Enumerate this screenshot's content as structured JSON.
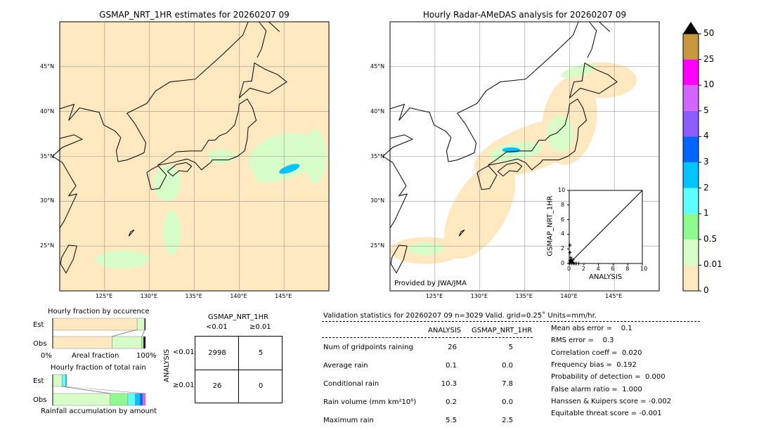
{
  "map_left": {
    "title": "GSMAP_NRT_1HR estimates for 20260207 09"
  },
  "map_right": {
    "title": "Hourly Radar-AMeDAS analysis for 20260207 09",
    "credit": "Provided by JWA/JMA"
  },
  "lon_ticks": [
    "125°E",
    "130°E",
    "135°E",
    "140°E",
    "145°E"
  ],
  "lat_ticks": [
    "45°N",
    "40°N",
    "35°N",
    "30°N",
    "25°N"
  ],
  "colorbar": {
    "labels": [
      "0",
      "0.01",
      "0.5",
      "1",
      "2",
      "3",
      "4",
      "5",
      "10",
      "25",
      "50"
    ],
    "colors": [
      "#fee8c0",
      "#d8fcc8",
      "#8ef98e",
      "#5cfefe",
      "#00c4ff",
      "#0066ff",
      "#8c5cff",
      "#d464ff",
      "#ff00ff",
      "#c8963c"
    ],
    "extend_color": "#000000"
  },
  "chart_data": [
    {
      "type": "scatter",
      "title": "",
      "xlabel": "ANALYSIS",
      "ylabel": "GSMAP_NRT_1HR",
      "xlim": [
        0,
        10
      ],
      "ylim": [
        0,
        10
      ],
      "ticks": [
        "0",
        "2",
        "4",
        "6",
        "8",
        "10"
      ],
      "points": [
        [
          0.1,
          0.1
        ],
        [
          0.2,
          0.3
        ],
        [
          0.3,
          0.5
        ],
        [
          0.4,
          0.2
        ],
        [
          0.5,
          0.1
        ],
        [
          0.1,
          1.5
        ],
        [
          0.1,
          2.5
        ],
        [
          0.2,
          0.8
        ],
        [
          0.6,
          0.0
        ],
        [
          0.8,
          0.0
        ],
        [
          1.0,
          0.0
        ],
        [
          1.3,
          0.0
        ],
        [
          0.3,
          0.0
        ],
        [
          0.1,
          0.4
        ],
        [
          0.5,
          0.5
        ]
      ]
    },
    {
      "type": "bar",
      "title": "Hourly fraction by occurence",
      "xlabel": "Areal fraction",
      "x_ticks": [
        "0%",
        "100%"
      ],
      "categories": [
        "Est",
        "Obs"
      ],
      "series": [
        {
          "values": [
            0.91,
            0.64
          ],
          "color": "#fee8c0"
        },
        {
          "values": [
            0.08,
            0.32
          ],
          "color": "#d8fcc8"
        },
        {
          "values": [
            0.0,
            0.02
          ],
          "color": "#8ef98e"
        },
        {
          "values": [
            0.01,
            0.02
          ],
          "color": "#000000"
        }
      ]
    },
    {
      "type": "bar",
      "title": "Hourly fraction of total rain",
      "xlabel": "Rainfall accumulation by amount",
      "categories": [
        "Est",
        "Obs"
      ],
      "series": [
        {
          "values": [
            0.1,
            0.62
          ],
          "color": "#d8fcc8"
        },
        {
          "values": [
            0.0,
            0.19
          ],
          "color": "#8ef98e"
        },
        {
          "values": [
            0.04,
            0.08
          ],
          "color": "#5cfefe"
        },
        {
          "values": [
            0.01,
            0.05
          ],
          "color": "#00c4ff"
        },
        {
          "values": [
            0.0,
            0.03
          ],
          "color": "#0066ff"
        },
        {
          "values": [
            0.0,
            0.03
          ],
          "color": "#d464ff"
        }
      ]
    }
  ],
  "contingency": {
    "title": "GSMAP_NRT_1HR",
    "col_labels": [
      "<0.01",
      "≥0.01"
    ],
    "row_title": "ANALYSIS",
    "row_labels": [
      "<0.01",
      "≥0.01"
    ],
    "cells": [
      [
        "2998",
        "5"
      ],
      [
        "26",
        "0"
      ]
    ]
  },
  "stats": {
    "header": "Validation statistics for 20260207 09  n=3029 Valid. grid=0.25˚ Units=mm/hr.",
    "columns": [
      "ANALYSIS",
      "GSMAP_NRT_1HR"
    ],
    "rows": [
      {
        "label": "Num of gridpoints raining",
        "a": "26",
        "g": "5"
      },
      {
        "label": "Average rain",
        "a": "0.1",
        "g": "0.0"
      },
      {
        "label": "Conditional rain",
        "a": "10.3",
        "g": "7.8"
      },
      {
        "label": "Rain volume (mm km²10⁶)",
        "a": "0.2",
        "g": "0.0"
      },
      {
        "label": "Maximum rain",
        "a": "5.5",
        "g": "2.5"
      }
    ],
    "scores": [
      "Mean abs error =    0.1",
      "RMS error =    0.3",
      "Correlation coeff =  0.020",
      "Frequency bias =  0.192",
      "Probability of detection =  0.000",
      "False alarm ratio =  1.000",
      "Hanssen & Kuipers score = -0.002",
      "Equitable threat score = -0.001"
    ]
  }
}
